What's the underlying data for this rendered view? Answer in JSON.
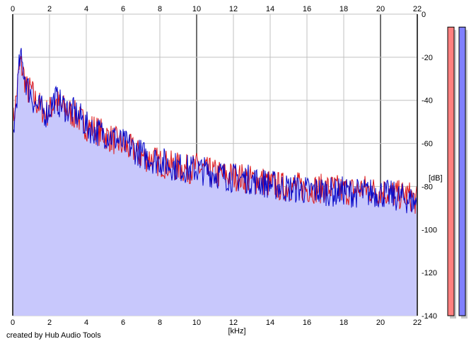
{
  "chart_data": {
    "type": "area",
    "xlabel": "[kHz]",
    "ylabel": "[dB]",
    "xlim": [
      0,
      22
    ],
    "ylim": [
      -140,
      0
    ],
    "x_ticks": [
      0,
      2,
      4,
      6,
      8,
      10,
      12,
      14,
      16,
      18,
      20,
      22
    ],
    "y_ticks": [
      0,
      -20,
      -40,
      -60,
      -80,
      -100,
      -120,
      -140
    ],
    "grid": true,
    "series": [
      {
        "color": "#e01818",
        "x": [
          0,
          0.2,
          0.4,
          0.6,
          0.8,
          1.0,
          1.2,
          1.5,
          1.8,
          2.0,
          2.3,
          2.6,
          3.0,
          3.4,
          3.8,
          4.0,
          4.4,
          4.8,
          5.2,
          5.6,
          6.0,
          6.5,
          7.0,
          7.5,
          8.0,
          8.5,
          9.0,
          9.5,
          10.0,
          10.5,
          11.0,
          11.5,
          12.0,
          12.5,
          13.0,
          13.5,
          14.0,
          14.5,
          15.0,
          15.5,
          16.0,
          16.5,
          17.0,
          17.5,
          18.0,
          18.5,
          19.0,
          19.5,
          20.0,
          20.5,
          21.0,
          21.5,
          22.0
        ],
        "values": [
          -52,
          -38,
          -22,
          -28,
          -36,
          -35,
          -40,
          -43,
          -46,
          -45,
          -40,
          -43,
          -45,
          -47,
          -50,
          -52,
          -53,
          -55,
          -57,
          -59,
          -61,
          -63,
          -66,
          -67,
          -69,
          -70,
          -71,
          -72,
          -71,
          -73,
          -74,
          -75,
          -75,
          -76,
          -77,
          -77,
          -79,
          -80,
          -80,
          -80,
          -81,
          -81,
          -81,
          -81,
          -82,
          -82,
          -81,
          -82,
          -82,
          -83,
          -84,
          -84,
          -87
        ]
      },
      {
        "color": "#0808c8",
        "x": [
          0,
          0.2,
          0.4,
          0.6,
          0.8,
          1.0,
          1.2,
          1.5,
          1.8,
          2.0,
          2.3,
          2.6,
          3.0,
          3.4,
          3.8,
          4.0,
          4.4,
          4.8,
          5.2,
          5.6,
          6.0,
          6.5,
          7.0,
          7.5,
          8.0,
          8.5,
          9.0,
          9.5,
          10.0,
          10.5,
          11.0,
          11.5,
          12.0,
          12.5,
          13.0,
          13.5,
          14.0,
          14.5,
          15.0,
          15.5,
          16.0,
          16.5,
          17.0,
          17.5,
          18.0,
          18.5,
          19.0,
          19.5,
          20.0,
          20.5,
          21.0,
          21.5,
          22.0
        ],
        "values": [
          -58,
          -40,
          -20,
          -26,
          -34,
          -37,
          -42,
          -44,
          -46,
          -44,
          -39,
          -42,
          -44,
          -46,
          -49,
          -52,
          -54,
          -55,
          -56,
          -58,
          -60,
          -62,
          -65,
          -67,
          -68,
          -70,
          -71,
          -72,
          -72,
          -73,
          -74,
          -75,
          -76,
          -76,
          -77,
          -78,
          -79,
          -80,
          -81,
          -81,
          -82,
          -82,
          -82,
          -83,
          -82,
          -83,
          -83,
          -83,
          -83,
          -84,
          -85,
          -86,
          -88
        ]
      }
    ],
    "level_meters": [
      {
        "color": "#ff8080",
        "level_db": -6
      },
      {
        "color": "#8080ff",
        "level_db": -6
      }
    ]
  },
  "footer": {
    "credit": "created by Hub Audio Tools"
  },
  "colors": {
    "fill": "#c8c8fc",
    "grid": "#c0c0c0",
    "major_grid": "#707070",
    "background": "#ffffff"
  }
}
